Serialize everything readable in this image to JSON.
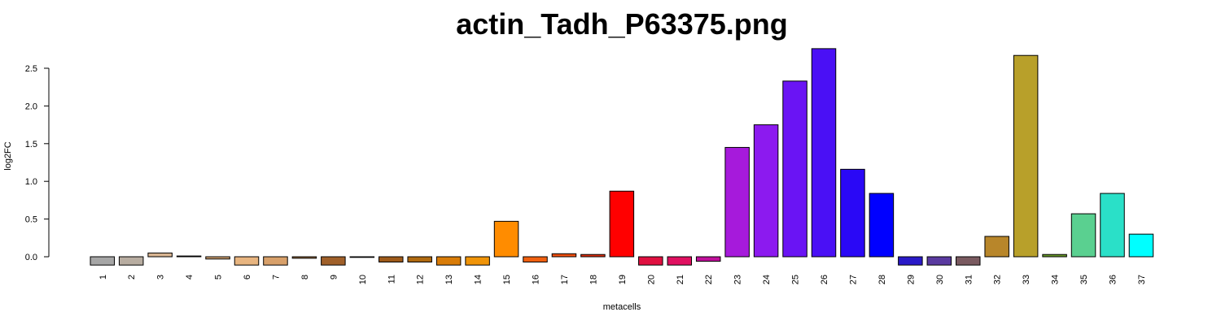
{
  "chart_data": {
    "type": "bar",
    "title": "actin_Tadh_P63375.png",
    "xlabel": "metacells",
    "ylabel": "log2FC",
    "ylim": [
      -0.1,
      2.78
    ],
    "yticks": [
      0.0,
      0.5,
      1.0,
      1.5,
      2.0,
      2.5
    ],
    "ytick_labels": [
      "0.0",
      "0.5",
      "1.0",
      "1.5",
      "2.0",
      "2.5"
    ],
    "grid": false,
    "legend": "none",
    "categories": [
      "1",
      "2",
      "3",
      "4",
      "5",
      "6",
      "7",
      "8",
      "9",
      "10",
      "11",
      "12",
      "13",
      "14",
      "15",
      "16",
      "17",
      "18",
      "19",
      "20",
      "21",
      "22",
      "23",
      "24",
      "25",
      "26",
      "27",
      "28",
      "29",
      "30",
      "31",
      "32",
      "33",
      "34",
      "35",
      "36",
      "37"
    ],
    "values": [
      -0.11,
      -0.11,
      0.05,
      0.01,
      -0.03,
      -0.11,
      -0.11,
      -0.02,
      -0.11,
      0.0,
      -0.07,
      -0.07,
      -0.11,
      -0.11,
      0.47,
      -0.07,
      0.04,
      0.03,
      0.87,
      -0.11,
      -0.11,
      -0.06,
      1.45,
      1.75,
      2.33,
      2.76,
      1.16,
      0.84,
      -0.11,
      -0.11,
      -0.11,
      0.27,
      2.67,
      0.03,
      0.57,
      0.84,
      0.3
    ],
    "colors": [
      "#a6a6a6",
      "#b8ada1",
      "#d9b592",
      "#8c6a3d",
      "#d0a070",
      "#e8b580",
      "#d8a06a",
      "#a07040",
      "#a0602a",
      "#c09060",
      "#9e5a1a",
      "#b06a10",
      "#d97c08",
      "#f09408",
      "#ff8c00",
      "#f06010",
      "#f05010",
      "#e03010",
      "#ff0000",
      "#e01040",
      "#e01060",
      "#c0109a",
      "#a61adb",
      "#8c1aef",
      "#6a14f4",
      "#4a10f5",
      "#2a08f6",
      "#0000ff",
      "#2a1ac8",
      "#5a3aa0",
      "#7a5a60",
      "#b8862a",
      "#b8a02a",
      "#6a9a2a",
      "#5ad090",
      "#2ae0c8",
      "#00ffff"
    ]
  }
}
